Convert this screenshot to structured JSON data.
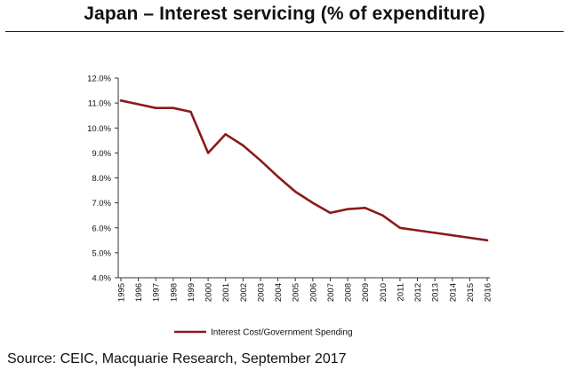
{
  "title": "Japan – Interest servicing (% of expenditure)",
  "source": "Source: CEIC, Macquarie Research, September 2017",
  "chart_data": {
    "type": "line",
    "title": "Japan – Interest servicing (% of expenditure)",
    "categories": [
      "1995",
      "1996",
      "1997",
      "1998",
      "1999",
      "2000",
      "2001",
      "2002",
      "2003",
      "2004",
      "2005",
      "2006",
      "2007",
      "2008",
      "2009",
      "2010",
      "2011",
      "2012",
      "2013",
      "2014",
      "2015",
      "2016"
    ],
    "series": [
      {
        "name": "Interest Cost/Government Spending",
        "color": "#8b1a1a",
        "values": [
          11.1,
          10.95,
          10.8,
          10.8,
          10.65,
          9.0,
          9.75,
          9.3,
          8.7,
          8.05,
          7.45,
          7.0,
          6.6,
          6.75,
          6.8,
          6.5,
          6.0,
          5.9,
          5.8,
          5.7,
          5.6,
          5.5
        ]
      }
    ],
    "yticks": [
      "4.0%",
      "5.0%",
      "6.0%",
      "7.0%",
      "8.0%",
      "9.0%",
      "10.0%",
      "11.0%",
      "12.0%"
    ],
    "ylim": [
      4.0,
      12.0
    ],
    "xlabel": "",
    "ylabel": "",
    "grid": false,
    "legend_position": "bottom"
  }
}
